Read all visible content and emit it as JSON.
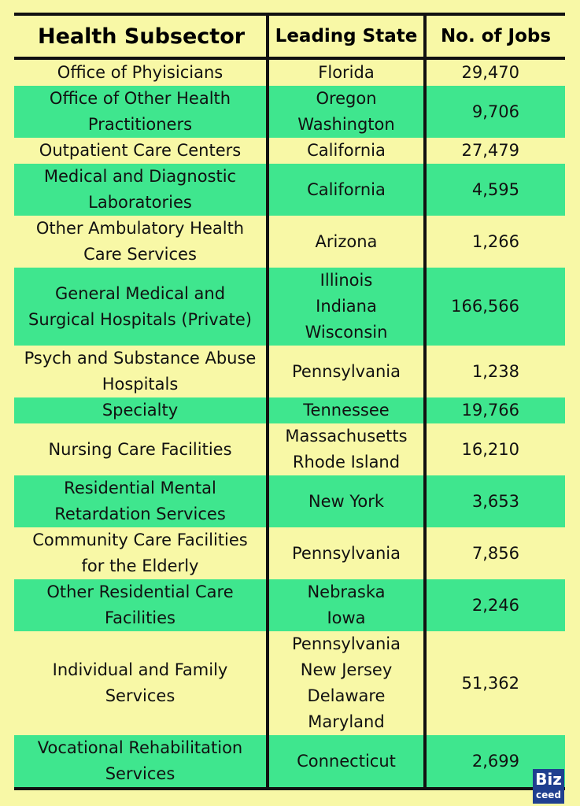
{
  "header": {
    "columns": [
      "Health Subsector",
      "Leading State",
      "No. of Jobs"
    ]
  },
  "table": {
    "rows": [
      [
        [
          "Office of Phyisicians"
        ],
        [
          "Florida"
        ],
        "29,470"
      ],
      [
        [
          "Office of Other Health",
          "Practitioners"
        ],
        [
          "Oregon",
          "Washington"
        ],
        "9,706"
      ],
      [
        [
          "Outpatient Care Centers"
        ],
        [
          "California"
        ],
        "27,479"
      ],
      [
        [
          "Medical and Diagnostic",
          "Laboratories"
        ],
        [
          "California"
        ],
        "4,595"
      ],
      [
        [
          "Other Ambulatory Health",
          "Care Services"
        ],
        [
          "Arizona"
        ],
        "1,266"
      ],
      [
        [
          "General Medical and",
          "Surgical Hospitals (Private)"
        ],
        [
          "Illinois",
          "Indiana",
          "Wisconsin"
        ],
        "166,566"
      ],
      [
        [
          "Psych and Substance Abuse",
          "Hospitals"
        ],
        [
          "Pennsylvania"
        ],
        "1,238"
      ],
      [
        [
          "Specialty"
        ],
        [
          "Tennessee"
        ],
        "19,766"
      ],
      [
        [
          "Nursing Care Facilities"
        ],
        [
          "Massachusetts",
          "Rhode Island"
        ],
        "16,210"
      ],
      [
        [
          "Residential Mental",
          "Retardation Services"
        ],
        [
          "New York"
        ],
        "3,653"
      ],
      [
        [
          "Community Care Facilities",
          "for the Elderly"
        ],
        [
          "Pennsylvania"
        ],
        "7,856"
      ],
      [
        [
          "Other Residential Care",
          "Facilities"
        ],
        [
          "Nebraska",
          "Iowa"
        ],
        "2,246"
      ],
      [
        [
          "Individual and Family",
          "Services"
        ],
        [
          "Pennsylvania",
          "New Jersey",
          "Delaware",
          "Maryland"
        ],
        "51,362"
      ],
      [
        [
          "Vocational Rehabilitation",
          "Services"
        ],
        [
          "Connecticut"
        ],
        "2,699"
      ]
    ]
  },
  "logo": [
    "Biz",
    "ceed"
  ]
}
